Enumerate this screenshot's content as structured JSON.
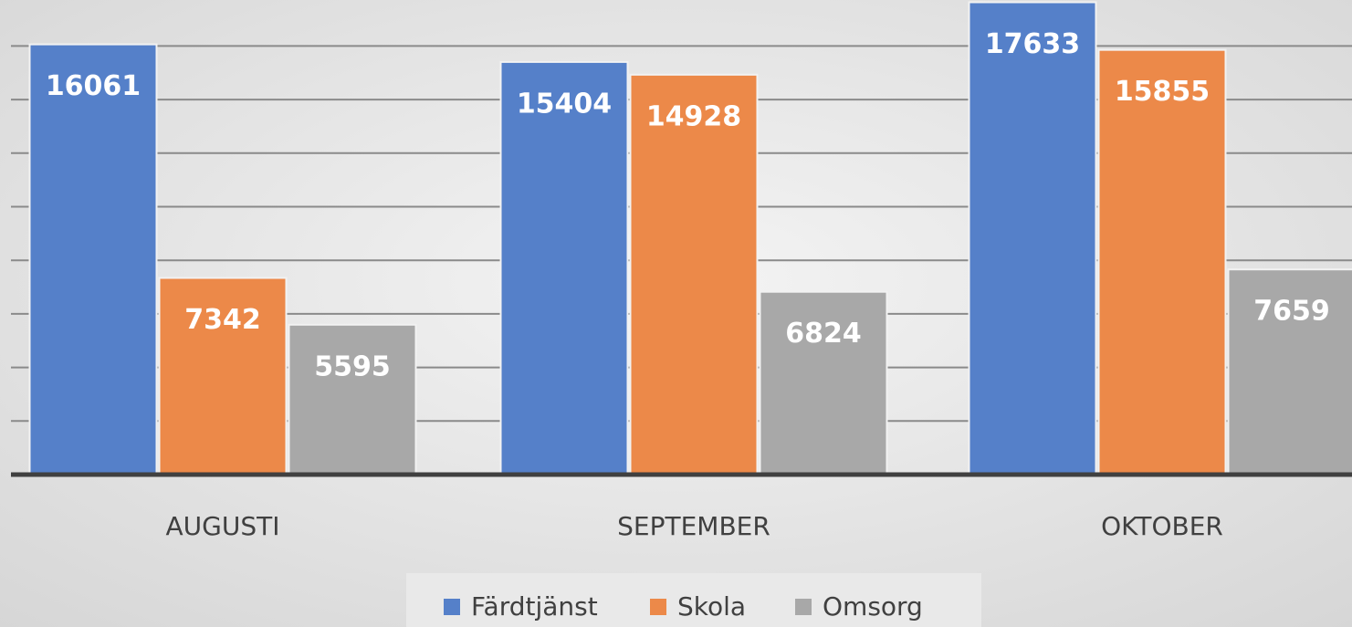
{
  "chart_data": {
    "type": "bar",
    "categories": [
      "AUGUSTI",
      "SEPTEMBER",
      "OKTOBER"
    ],
    "series": [
      {
        "name": "Färdtjänst",
        "color": "#5580c9",
        "values": [
          16061,
          15404,
          17633
        ]
      },
      {
        "name": "Skola",
        "color": "#ec8949",
        "values": [
          7342,
          14928,
          15855
        ]
      },
      {
        "name": "Omsorg",
        "color": "#a8a8a8",
        "values": [
          5595,
          6824,
          7659
        ]
      }
    ],
    "ylim": [
      0,
      18000
    ],
    "yticks": [
      0,
      2000,
      4000,
      6000,
      8000,
      10000,
      12000,
      14000,
      16000,
      18000
    ],
    "grid": true,
    "legend": "bottom"
  }
}
